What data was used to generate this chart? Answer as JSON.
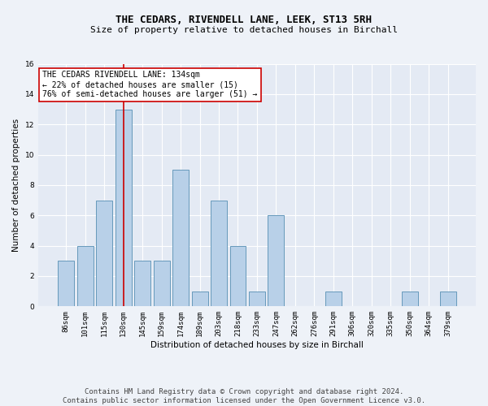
{
  "title": "THE CEDARS, RIVENDELL LANE, LEEK, ST13 5RH",
  "subtitle": "Size of property relative to detached houses in Birchall",
  "xlabel": "Distribution of detached houses by size in Birchall",
  "ylabel": "Number of detached properties",
  "categories": [
    "86sqm",
    "101sqm",
    "115sqm",
    "130sqm",
    "145sqm",
    "159sqm",
    "174sqm",
    "189sqm",
    "203sqm",
    "218sqm",
    "233sqm",
    "247sqm",
    "262sqm",
    "276sqm",
    "291sqm",
    "306sqm",
    "320sqm",
    "335sqm",
    "350sqm",
    "364sqm",
    "379sqm"
  ],
  "values": [
    3,
    4,
    7,
    13,
    3,
    3,
    9,
    1,
    7,
    4,
    1,
    6,
    0,
    0,
    1,
    0,
    0,
    0,
    1,
    0,
    1
  ],
  "bar_color": "#b8d0e8",
  "bar_edge_color": "#6699bb",
  "highlight_bar_index": 3,
  "highlight_line_color": "#cc0000",
  "ylim": [
    0,
    16
  ],
  "yticks": [
    0,
    2,
    4,
    6,
    8,
    10,
    12,
    14,
    16
  ],
  "annotation_text": "THE CEDARS RIVENDELL LANE: 134sqm\n← 22% of detached houses are smaller (15)\n76% of semi-detached houses are larger (51) →",
  "annotation_box_color": "#ffffff",
  "annotation_box_edge": "#cc0000",
  "footer_line1": "Contains HM Land Registry data © Crown copyright and database right 2024.",
  "footer_line2": "Contains public sector information licensed under the Open Government Licence v3.0.",
  "bg_color": "#eef2f8",
  "plot_bg_color": "#e4eaf4",
  "grid_color": "#ffffff",
  "title_fontsize": 9,
  "subtitle_fontsize": 8,
  "axis_label_fontsize": 7.5,
  "tick_fontsize": 6.5,
  "footer_fontsize": 6.5,
  "annotation_fontsize": 7
}
